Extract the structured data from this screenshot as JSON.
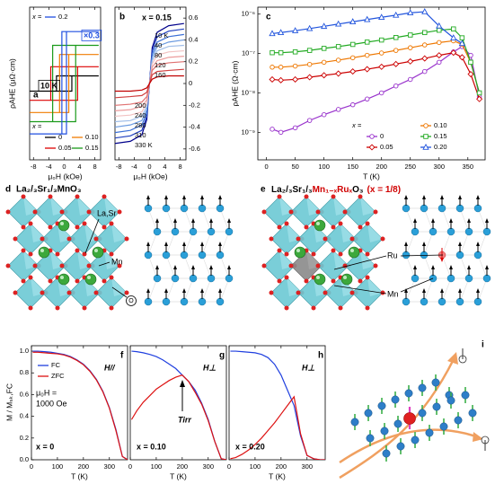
{
  "chart_data": [
    {
      "panel": "a",
      "type": "line",
      "xlabel": "μ₀H (kOe)",
      "ylabel": "ρAHE (μΩ·cm)",
      "xlim": [
        -9,
        9.5
      ],
      "xticks": [
        -8,
        -4,
        0,
        4,
        8
      ],
      "ylim": [
        -1,
        1
      ],
      "legend_title": "x =",
      "annotations": [
        "×0.3",
        "10 K"
      ],
      "series": [
        {
          "name": "0",
          "color": "#000000",
          "x": [
            -9,
            2,
            2,
            9,
            -2,
            -2,
            -9
          ],
          "values": [
            -0.1,
            -0.1,
            0.1,
            0.1,
            0.1,
            -0.1,
            -0.1
          ]
        },
        {
          "name": "0.05",
          "color": "#dd0000",
          "x": [
            -9,
            3.5,
            3.5,
            9,
            -3.5,
            -3.5,
            -9
          ],
          "values": [
            -0.22,
            -0.22,
            0.22,
            0.22,
            0.22,
            -0.22,
            -0.22
          ]
        },
        {
          "name": "0.10",
          "color": "#f07c00",
          "x": [
            -9,
            1.2,
            1.2,
            9,
            -1.2,
            -1.2,
            -9
          ],
          "values": [
            -0.38,
            -0.38,
            0.38,
            0.38,
            0.38,
            -0.38,
            -0.38
          ]
        },
        {
          "name": "0.15",
          "color": "#1a9a1a",
          "x": [
            -9,
            3,
            3,
            9,
            -3,
            -3,
            -9
          ],
          "values": [
            -0.5,
            -0.5,
            0.5,
            0.5,
            0.5,
            -0.5,
            -0.5
          ]
        },
        {
          "name": "0.2",
          "color": "#1f4fe0",
          "x": [
            -9,
            0.6,
            0.6,
            9,
            -0.6,
            -0.6,
            -9
          ],
          "values": [
            -0.66,
            -0.66,
            0.68,
            0.68,
            0.68,
            -0.66,
            -0.66
          ]
        }
      ]
    },
    {
      "panel": "b",
      "type": "line",
      "title": "x = 0.15",
      "xlabel": "μ₀H (kOe)",
      "xlim": [
        -9,
        9.5
      ],
      "xticks": [
        -8,
        -4,
        0,
        4,
        8
      ],
      "ylim": [
        -0.7,
        0.7
      ],
      "yticks": [
        -0.6,
        -0.4,
        -0.2,
        0,
        0.2,
        0.4,
        0.6
      ],
      "yaxis": "right",
      "x": [
        -9,
        -5,
        -2,
        -0.7,
        0,
        0.7,
        2,
        5,
        9
      ],
      "series": [
        {
          "name": "10 K",
          "color": "#00008b",
          "values": [
            -0.55,
            -0.53,
            -0.47,
            -0.33,
            0,
            0.33,
            0.47,
            0.53,
            0.55
          ]
        },
        {
          "name": "40",
          "color": "#1f3fbf",
          "values": [
            -0.5,
            -0.48,
            -0.43,
            -0.3,
            0,
            0.3,
            0.43,
            0.48,
            0.5
          ]
        },
        {
          "name": "80",
          "color": "#3b6fd6",
          "values": [
            -0.45,
            -0.43,
            -0.38,
            -0.27,
            0,
            0.27,
            0.38,
            0.43,
            0.45
          ]
        },
        {
          "name": "120",
          "color": "#6a9ae0",
          "values": [
            -0.4,
            -0.38,
            -0.34,
            -0.24,
            0,
            0.24,
            0.34,
            0.38,
            0.4
          ]
        },
        {
          "name": "160",
          "color": "#9fbde8",
          "values": [
            -0.35,
            -0.34,
            -0.3,
            -0.21,
            0,
            0.21,
            0.3,
            0.34,
            0.35
          ]
        },
        {
          "name": "200",
          "color": "#f2c2c2",
          "values": [
            -0.3,
            -0.29,
            -0.26,
            -0.18,
            0,
            0.18,
            0.26,
            0.29,
            0.3
          ]
        },
        {
          "name": "240",
          "color": "#ec9c9c",
          "values": [
            -0.25,
            -0.24,
            -0.21,
            -0.15,
            0,
            0.15,
            0.21,
            0.24,
            0.25
          ]
        },
        {
          "name": "280",
          "color": "#e07070",
          "values": [
            -0.2,
            -0.19,
            -0.17,
            -0.12,
            0,
            0.12,
            0.17,
            0.19,
            0.2
          ]
        },
        {
          "name": "310",
          "color": "#d04040",
          "values": [
            -0.13,
            -0.12,
            -0.11,
            -0.08,
            0,
            0.08,
            0.11,
            0.12,
            0.13
          ]
        },
        {
          "name": "330 K",
          "color": "#c00000",
          "values": [
            -0.07,
            -0.07,
            -0.06,
            -0.04,
            0,
            0.04,
            0.06,
            0.07,
            0.07
          ]
        }
      ]
    },
    {
      "panel": "c",
      "type": "line",
      "xlabel": "T (K)",
      "ylabel": "ρAHE (Ω·cm)",
      "yscale": "log",
      "xlim": [
        -15,
        380
      ],
      "xticks": [
        0,
        50,
        100,
        150,
        200,
        250,
        300,
        350
      ],
      "ylim": [
        2e-10,
        1.5e-06
      ],
      "yticks": [
        {
          "value": 1e-09,
          "label": "10⁻⁹"
        },
        {
          "value": 1e-08,
          "label": "10⁻⁸"
        },
        {
          "value": 1e-07,
          "label": "10⁻⁷"
        },
        {
          "value": 1e-06,
          "label": "10⁻⁶"
        }
      ],
      "legend_title": "x =",
      "x": [
        10,
        25,
        50,
        75,
        100,
        125,
        150,
        175,
        200,
        225,
        250,
        275,
        300,
        325,
        340,
        355,
        370
      ],
      "series": [
        {
          "name": "0",
          "color": "#9933cc",
          "marker": "circle",
          "values": [
            1.2e-09,
            1e-09,
            1.3e-09,
            2e-09,
            2.8e-09,
            3.8e-09,
            5e-09,
            7e-09,
            1e-08,
            1.5e-08,
            2.2e-08,
            3.5e-08,
            6e-08,
            1.1e-07,
            1.5e-07,
            9e-08,
            8e-09
          ]
        },
        {
          "name": "0.05",
          "color": "#cc0000",
          "marker": "diamond",
          "values": [
            2.2e-08,
            2.1e-08,
            2.2e-08,
            2.5e-08,
            2.8e-08,
            3.1e-08,
            3.5e-08,
            4e-08,
            4.6e-08,
            5.4e-08,
            6.3e-08,
            7.5e-08,
            9e-08,
            1.05e-07,
            8e-08,
            3e-08,
            7e-09
          ]
        },
        {
          "name": "0.10",
          "color": "#ee7700",
          "marker": "circle",
          "values": [
            4.5e-08,
            4.5e-08,
            4.8e-08,
            5.3e-08,
            6e-08,
            6.8e-08,
            7.8e-08,
            9e-08,
            1.03e-07,
            1.2e-07,
            1.4e-07,
            1.65e-07,
            1.9e-07,
            2.1e-07,
            1.7e-07,
            6e-08,
            1e-08
          ]
        },
        {
          "name": "0.15",
          "color": "#22aa22",
          "marker": "square",
          "values": [
            1.05e-07,
            1.05e-07,
            1.1e-07,
            1.2e-07,
            1.35e-07,
            1.5e-07,
            1.7e-07,
            1.95e-07,
            2.2e-07,
            2.55e-07,
            2.95e-07,
            3.4e-07,
            3.9e-07,
            4.2e-07,
            2.5e-07,
            6e-08,
            1e-08
          ]
        },
        {
          "name": "0.20",
          "color": "#2255dd",
          "marker": "triangle",
          "values": [
            3.2e-07,
            3.4e-07,
            3.8e-07,
            4.3e-07,
            4.9e-07,
            5.6e-07,
            6.4e-07,
            7.3e-07,
            8.3e-07,
            9.4e-07,
            1.08e-06,
            1.15e-06,
            5e-07,
            2.5e-07,
            1.8e-07,
            null,
            null
          ]
        }
      ]
    },
    {
      "panel": "f",
      "type": "line",
      "xlabel": "T (K)",
      "ylabel": "M / M₅ₖ,FC",
      "xlim": [
        0,
        370
      ],
      "xticks": [
        0,
        100,
        200,
        300
      ],
      "ylim": [
        0,
        1.05
      ],
      "yticks": [
        {
          "value": 0,
          "label": "0.0"
        },
        0.2,
        0.4,
        0.6,
        0.8,
        {
          "value": 1,
          "label": "1.0"
        }
      ],
      "annotations": [
        "H//",
        "μ₀H =",
        "1000 Oe",
        "x = 0"
      ],
      "x": [
        5,
        25,
        50,
        75,
        100,
        125,
        150,
        175,
        200,
        225,
        250,
        275,
        300,
        325,
        350,
        370
      ],
      "series": [
        {
          "name": "FC",
          "color": "#1f3fdf",
          "values": [
            1,
            1,
            0.995,
            0.99,
            0.98,
            0.97,
            0.95,
            0.92,
            0.88,
            0.82,
            0.74,
            0.63,
            0.48,
            0.28,
            0.03,
            0
          ]
        },
        {
          "name": "ZFC",
          "color": "#dd1111",
          "values": [
            0.99,
            0.99,
            0.985,
            0.98,
            0.975,
            0.965,
            0.945,
            0.915,
            0.875,
            0.815,
            0.735,
            0.625,
            0.475,
            0.27,
            0.03,
            0
          ]
        }
      ]
    },
    {
      "panel": "g",
      "type": "line",
      "xlabel": "T (K)",
      "xlim": [
        0,
        370
      ],
      "xticks": [
        0,
        100,
        200,
        300
      ],
      "ylim": [
        0,
        1.05
      ],
      "annotations": [
        "H⊥",
        "Tirr",
        "x = 0.10"
      ],
      "x": [
        5,
        25,
        50,
        75,
        100,
        125,
        150,
        175,
        200,
        225,
        250,
        275,
        300,
        325,
        350,
        370
      ],
      "series": [
        {
          "name": "FC",
          "color": "#1f3fdf",
          "values": [
            1,
            0.995,
            0.985,
            0.97,
            0.95,
            0.92,
            0.88,
            0.84,
            0.78,
            0.72,
            0.64,
            0.52,
            0.37,
            0.17,
            0.01,
            0
          ]
        },
        {
          "name": "ZFC",
          "color": "#dd1111",
          "values": [
            0.37,
            0.45,
            0.53,
            0.59,
            0.65,
            0.69,
            0.73,
            0.76,
            0.78,
            0.72,
            0.62,
            0.51,
            0.36,
            0.17,
            0.01,
            0
          ]
        }
      ]
    },
    {
      "panel": "h",
      "type": "line",
      "xlabel": "T (K)",
      "xlim": [
        0,
        370
      ],
      "xticks": [
        0,
        100,
        200,
        300
      ],
      "ylim": [
        0,
        1.05
      ],
      "annotations": [
        "H⊥",
        "x = 0.20"
      ],
      "x": [
        5,
        25,
        50,
        75,
        100,
        125,
        150,
        175,
        200,
        225,
        250,
        275,
        300,
        325,
        350,
        370
      ],
      "series": [
        {
          "name": "FC",
          "color": "#1f3fdf",
          "values": [
            1,
            1,
            0.995,
            0.99,
            0.985,
            0.97,
            0.94,
            0.88,
            0.78,
            0.64,
            0.5,
            0.22,
            0.04,
            0.01,
            0,
            0
          ]
        },
        {
          "name": "ZFC",
          "color": "#dd1111",
          "values": [
            0.01,
            0.02,
            0.05,
            0.09,
            0.14,
            0.2,
            0.27,
            0.34,
            0.42,
            0.5,
            0.58,
            0.24,
            0.04,
            0.01,
            0,
            0
          ]
        }
      ]
    }
  ],
  "panel_d": {
    "letter": "d",
    "title": "La₂/₃Sr₁/₃MnO₃",
    "labels": [
      "La,Sr",
      "Mn",
      "O"
    ]
  },
  "panel_e": {
    "letter": "e",
    "title": [
      "La₂/₃Sr₁/₃",
      "Mn₁₋ₓRuₓ",
      "O₃",
      "(x = 1/8)"
    ],
    "labels": [
      "Ru",
      "Mn"
    ]
  },
  "panel_i": {
    "letter": "i"
  }
}
